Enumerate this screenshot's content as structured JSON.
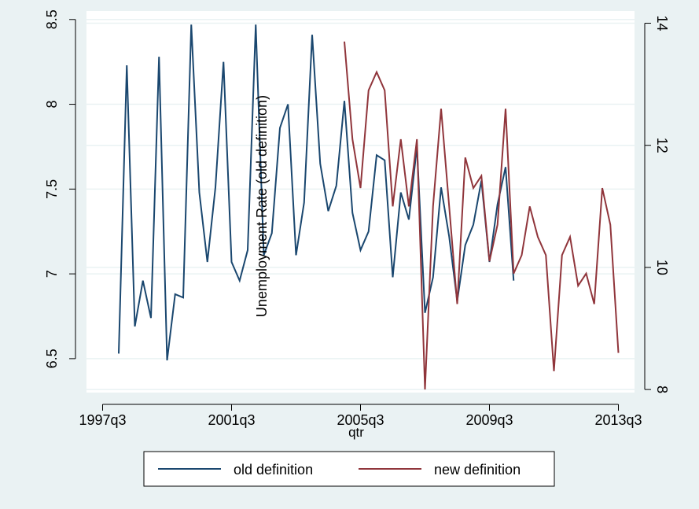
{
  "chart_data": {
    "type": "line",
    "xlabel": "qtr",
    "ylabel_left": "",
    "ylabel_overlay": "Unemployment Rate (old definition)",
    "x_ticks": [
      "1997q3",
      "2001q3",
      "2005q3",
      "2009q3",
      "2013q3"
    ],
    "left_axis": {
      "ylim": [
        6.3,
        8.55
      ],
      "ticks": [
        "6.5",
        "7",
        "7.5",
        "8",
        "8.5"
      ]
    },
    "right_axis": {
      "ylim": [
        7.95,
        14.2
      ],
      "ticks": [
        "8",
        "10",
        "12",
        "14"
      ]
    },
    "grid": true,
    "legend_position": "bottom",
    "series": [
      {
        "name": "old definition",
        "axis": "left",
        "color": "#1a476f",
        "x": [
          "1998q1",
          "1998q2",
          "1998q3",
          "1998q4",
          "1999q1",
          "1999q2",
          "1999q3",
          "1999q4",
          "2000q1",
          "2000q2",
          "2000q3",
          "2000q4",
          "2001q1",
          "2001q2",
          "2001q3",
          "2001q4",
          "2002q1",
          "2002q2",
          "2002q3",
          "2002q4",
          "2003q1",
          "2003q2",
          "2003q3",
          "2003q4",
          "2004q1",
          "2004q2",
          "2004q3",
          "2004q4",
          "2005q1",
          "2005q2",
          "2005q3",
          "2005q4",
          "2006q1",
          "2006q2",
          "2006q3",
          "2006q4",
          "2007q1",
          "2007q2",
          "2007q3",
          "2007q4",
          "2008q1",
          "2008q2",
          "2008q3",
          "2008q4",
          "2009q1",
          "2009q2",
          "2009q3",
          "2009q4",
          "2010q1",
          "2010q2",
          "2010q3"
        ],
        "values": [
          6.53,
          8.23,
          6.69,
          6.96,
          6.74,
          8.28,
          6.49,
          6.88,
          6.86,
          8.47,
          7.48,
          7.07,
          7.51,
          8.25,
          7.07,
          6.96,
          7.14,
          8.47,
          7.11,
          7.24,
          7.86,
          8.0,
          7.11,
          7.42,
          8.41,
          7.65,
          7.37,
          7.52,
          8.02,
          7.36,
          7.14,
          7.25,
          7.7,
          7.67,
          6.98,
          7.48,
          7.32,
          7.75,
          6.77,
          6.98,
          7.51,
          7.22,
          6.84,
          7.17,
          7.29,
          7.55,
          7.07,
          7.41,
          7.63,
          6.96,
          null
        ]
      },
      {
        "name": "new definition",
        "axis": "right",
        "color": "#90353b",
        "x": [
          "2005q1",
          "2005q2",
          "2005q3",
          "2005q4",
          "2006q1",
          "2006q2",
          "2006q3",
          "2006q4",
          "2007q1",
          "2007q2",
          "2007q3",
          "2007q4",
          "2008q1",
          "2008q2",
          "2008q3",
          "2008q4",
          "2009q1",
          "2009q2",
          "2009q3",
          "2009q4",
          "2010q1",
          "2010q2",
          "2010q3",
          "2010q4",
          "2011q1",
          "2011q2",
          "2011q3",
          "2011q4",
          "2012q1",
          "2012q2",
          "2012q3",
          "2012q4",
          "2013q1",
          "2013q2",
          "2013q3"
        ],
        "values": [
          13.7,
          12.1,
          11.3,
          12.9,
          13.2,
          12.9,
          11.0,
          12.1,
          11.0,
          12.1,
          8.0,
          11.0,
          12.6,
          11.0,
          9.4,
          11.8,
          11.3,
          11.5,
          10.1,
          10.7,
          12.6,
          9.9,
          10.2,
          11.0,
          10.5,
          10.2,
          8.3,
          10.2,
          10.5,
          9.7,
          9.9,
          9.4,
          11.3,
          10.7,
          8.6
        ]
      }
    ]
  }
}
